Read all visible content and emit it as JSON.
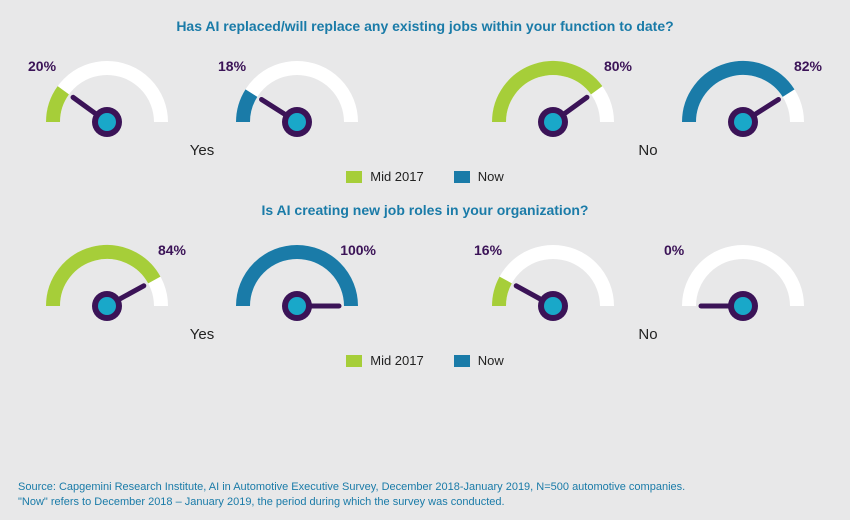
{
  "colors": {
    "green": "#a6ce39",
    "blue": "#1a7ba8",
    "dark_purple": "#3b1357",
    "inner_cyan": "#19a8c9",
    "track": "#ffffff",
    "text": "#222222",
    "background": "#e8e8e9"
  },
  "gauge_style": {
    "radius": 54,
    "stroke_width": 14,
    "hub_outer_r": 15,
    "hub_inner_r": 9,
    "needle_len": 42,
    "needle_width": 5
  },
  "sections": [
    {
      "title": "Has AI replaced/will replace any existing jobs within your function to date?",
      "groups": [
        {
          "label": "Yes",
          "gauges": [
            {
              "value": 20,
              "color_key": "green",
              "label": "20%",
              "label_side": "left"
            },
            {
              "value": 18,
              "color_key": "blue",
              "label": "18%",
              "label_side": "left"
            }
          ]
        },
        {
          "label": "No",
          "gauges": [
            {
              "value": 80,
              "color_key": "green",
              "label": "80%",
              "label_side": "right"
            },
            {
              "value": 82,
              "color_key": "blue",
              "label": "82%",
              "label_side": "right"
            }
          ]
        }
      ]
    },
    {
      "title": "Is AI creating new job roles in your organization?",
      "groups": [
        {
          "label": "Yes",
          "gauges": [
            {
              "value": 84,
              "color_key": "green",
              "label": "84%",
              "label_side": "right"
            },
            {
              "value": 100,
              "color_key": "blue",
              "label": "100%",
              "label_side": "right"
            }
          ]
        },
        {
          "label": "No",
          "gauges": [
            {
              "value": 16,
              "color_key": "green",
              "label": "16%",
              "label_side": "left"
            },
            {
              "value": 0,
              "color_key": "blue",
              "label": "0%",
              "label_side": "left"
            }
          ]
        }
      ]
    }
  ],
  "legend": [
    {
      "label": "Mid 2017",
      "color_key": "green"
    },
    {
      "label": "Now",
      "color_key": "blue"
    }
  ],
  "footer": {
    "line1": "Source: Capgemini Research Institute, AI in Automotive Executive Survey, December 2018-January 2019, N=500 automotive companies.",
    "line2": "\"Now\" refers to December 2018 – January 2019, the period during which the survey was conducted."
  }
}
